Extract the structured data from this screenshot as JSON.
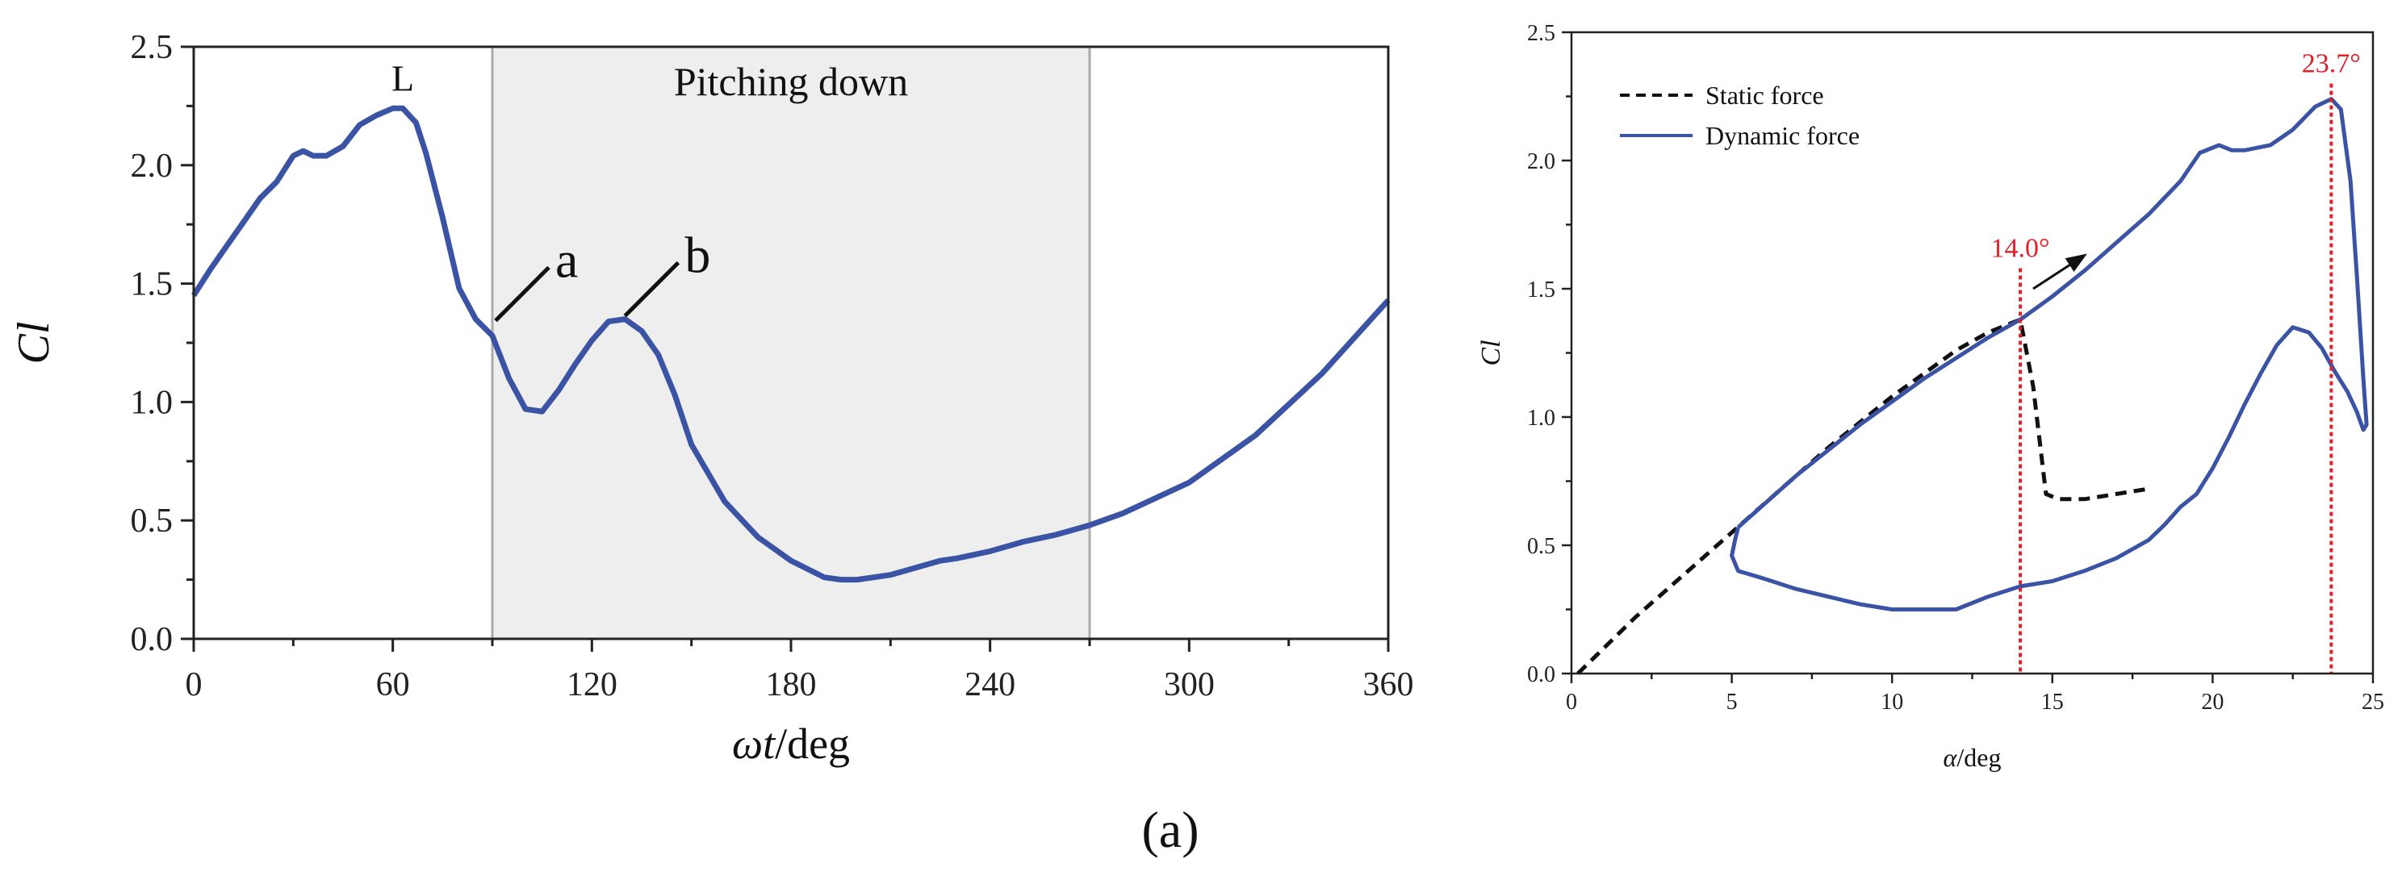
{
  "caption": "(a)",
  "colors": {
    "dynamic": "#3a53a4",
    "static": "#111111",
    "shade": "#eeeeee",
    "marker_line": "#e0202a"
  },
  "chart_data": [
    {
      "type": "line",
      "xlabel": "ωt/deg",
      "xlabel_italic_part": "ωt",
      "xlabel_unit_part": "/deg",
      "ylabel": "Cl",
      "xlim": [
        0,
        360
      ],
      "ylim": [
        0,
        2.5
      ],
      "xticks": [
        "0",
        "60",
        "120",
        "180",
        "240",
        "300",
        "360"
      ],
      "yticks": [
        "0.0",
        "0.5",
        "1.0",
        "1.5",
        "2.0",
        "2.5"
      ],
      "shaded_region": {
        "x_start": 90,
        "x_end": 270,
        "label": "Pitching down"
      },
      "annotations": [
        {
          "text": "L",
          "x": 63,
          "y": 2.26
        },
        {
          "text": "a",
          "x": 90,
          "y": 1.33
        },
        {
          "text": "b",
          "x": 129,
          "y": 1.35
        }
      ],
      "grid": false,
      "series": [
        {
          "x": [
            0,
            5,
            10,
            15,
            20,
            25,
            30,
            33,
            36,
            40,
            45,
            50,
            55,
            60,
            63,
            67,
            70,
            75,
            80,
            85,
            90,
            95,
            100,
            105,
            110,
            115,
            120,
            125,
            130,
            135,
            140,
            145,
            150,
            160,
            170,
            180,
            190,
            195,
            200,
            210,
            220,
            225,
            230,
            240,
            250,
            260,
            270,
            280,
            300,
            320,
            340,
            360
          ],
          "y": [
            1.45,
            1.56,
            1.66,
            1.76,
            1.86,
            1.93,
            2.04,
            2.06,
            2.04,
            2.04,
            2.08,
            2.17,
            2.21,
            2.24,
            2.24,
            2.18,
            2.05,
            1.78,
            1.48,
            1.35,
            1.28,
            1.1,
            0.97,
            0.96,
            1.05,
            1.16,
            1.26,
            1.34,
            1.35,
            1.3,
            1.2,
            1.03,
            0.82,
            0.58,
            0.43,
            0.33,
            0.26,
            0.25,
            0.25,
            0.27,
            0.31,
            0.33,
            0.34,
            0.37,
            0.41,
            0.44,
            0.48,
            0.53,
            0.66,
            0.86,
            1.12,
            1.43
          ]
        }
      ]
    },
    {
      "type": "line",
      "xlabel": "α/deg",
      "xlabel_italic_part": "α",
      "xlabel_unit_part": "/deg",
      "ylabel": "Cl",
      "xlim": [
        0,
        25
      ],
      "ylim": [
        0,
        2.5
      ],
      "xticks": [
        "0",
        "5",
        "10",
        "15",
        "20",
        "25"
      ],
      "yticks": [
        "0.0",
        "0.5",
        "1.0",
        "1.5",
        "2.0",
        "2.5"
      ],
      "legend_position": "top-left",
      "grid": false,
      "vertical_markers": [
        {
          "x": 14.0,
          "label": "14.0°"
        },
        {
          "x": 23.7,
          "label": "23.7°"
        }
      ],
      "arrow": {
        "from": [
          14.4,
          1.5
        ],
        "to": [
          16.0,
          1.63
        ]
      },
      "series": [
        {
          "name": "Static force",
          "style": "dashed",
          "x": [
            0.2,
            2,
            4,
            6,
            8,
            10,
            12,
            13,
            13.8,
            14.0,
            14.4,
            14.8,
            15.2,
            16,
            17,
            18
          ],
          "y": [
            0.0,
            0.22,
            0.44,
            0.66,
            0.88,
            1.08,
            1.26,
            1.33,
            1.37,
            1.38,
            1.12,
            0.7,
            0.68,
            0.68,
            0.7,
            0.72
          ],
          "x_extent": "0–18"
        },
        {
          "name": "Dynamic force",
          "style": "solid",
          "x": [
            5.2,
            7,
            9,
            11,
            13,
            14,
            15,
            16,
            17,
            18,
            19,
            19.6,
            20.2,
            20.6,
            21,
            21.8,
            22.5,
            23.2,
            23.7,
            24.0,
            24.3,
            24.5,
            24.7,
            24.8,
            24.7,
            24.5,
            24.2,
            23.8,
            23.4,
            23.0,
            22.5,
            22.0,
            21.5,
            21.0,
            20.5,
            20.0,
            19.5,
            19.0,
            18.5,
            18.0,
            17.0,
            16.0,
            15.0,
            14.0,
            13.0,
            12.0,
            11.0,
            10.0,
            9.0,
            8.0,
            7.0,
            6.0,
            5.2,
            5.0,
            5.1,
            5.2
          ],
          "y": [
            0.57,
            0.77,
            0.97,
            1.15,
            1.31,
            1.38,
            1.47,
            1.57,
            1.68,
            1.79,
            1.92,
            2.03,
            2.06,
            2.04,
            2.04,
            2.06,
            2.12,
            2.21,
            2.24,
            2.2,
            1.92,
            1.55,
            1.15,
            0.97,
            0.95,
            1.02,
            1.1,
            1.18,
            1.27,
            1.33,
            1.35,
            1.28,
            1.17,
            1.05,
            0.92,
            0.8,
            0.7,
            0.65,
            0.58,
            0.52,
            0.45,
            0.4,
            0.36,
            0.34,
            0.3,
            0.25,
            0.25,
            0.25,
            0.27,
            0.3,
            0.33,
            0.37,
            0.4,
            0.46,
            0.52,
            0.57
          ]
        }
      ]
    }
  ]
}
